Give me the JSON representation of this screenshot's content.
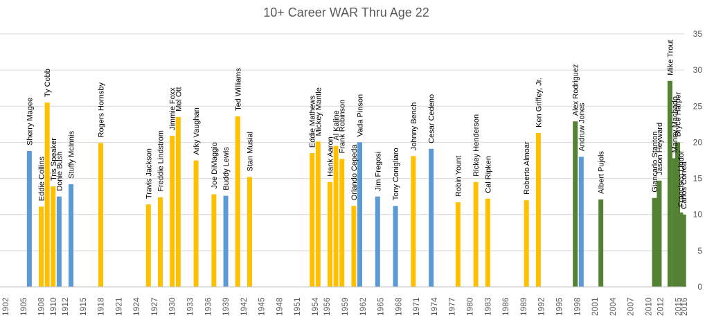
{
  "chart_data": {
    "type": "bar",
    "title": "10+ Career WAR Thru Age 22",
    "xlabel": "",
    "ylabel": "",
    "xlim": [
      1902,
      2016
    ],
    "ylim": [
      0,
      35
    ],
    "yticks": [
      0,
      5,
      10,
      15,
      20,
      25,
      30,
      35
    ],
    "xticks": [
      1902,
      1905,
      1908,
      1910,
      1912,
      1915,
      1918,
      1921,
      1924,
      1927,
      1930,
      1933,
      1936,
      1939,
      1942,
      1945,
      1948,
      1951,
      1954,
      1956,
      1959,
      1962,
      1965,
      1968,
      1971,
      1974,
      1977,
      1980,
      1983,
      1986,
      1989,
      1992,
      1995,
      1998,
      2001,
      2004,
      2007,
      2010,
      2012,
      2015,
      2016
    ],
    "grid": true,
    "legend": "none",
    "colors": {
      "blue": "#5b9bd5",
      "gold": "#ffc000",
      "green": "#548235",
      "grid": "#d9d9d9",
      "axis": "#bfbfbf",
      "text": "#595959"
    },
    "bars": [
      {
        "name": "Sherry Magee",
        "x": 1906.0,
        "value": 18.8,
        "color": "blue"
      },
      {
        "name": "Eddie Collins",
        "x": 1908.0,
        "value": 11.1,
        "color": "gold"
      },
      {
        "name": "Ty Cobb",
        "x": 1909.0,
        "value": 25.5,
        "color": "gold"
      },
      {
        "name": "Tris Speaker",
        "x": 1910.0,
        "value": 13.9,
        "color": "gold"
      },
      {
        "name": "Donie Bush",
        "x": 1911.0,
        "value": 12.5,
        "color": "blue"
      },
      {
        "name": "Stuffy McInnis",
        "x": 1913.0,
        "value": 14.2,
        "color": "blue"
      },
      {
        "name": "Rogers Hornsby",
        "x": 1918.0,
        "value": 19.9,
        "color": "gold"
      },
      {
        "name": "Travis Jackson",
        "x": 1926.0,
        "value": 11.4,
        "color": "gold"
      },
      {
        "name": "Freddie Lindstrom",
        "x": 1928.0,
        "value": 12.4,
        "color": "gold"
      },
      {
        "name": "Jimmie Foxx",
        "x": 1930.0,
        "value": 20.9,
        "color": "gold"
      },
      {
        "name": "Mel Ott",
        "x": 1931.0,
        "value": 23.5,
        "color": "gold"
      },
      {
        "name": "Arky Vaughan",
        "x": 1934.0,
        "value": 17.5,
        "color": "gold"
      },
      {
        "name": "Joe DiMaggio",
        "x": 1937.0,
        "value": 12.8,
        "color": "gold"
      },
      {
        "name": "Buddy Lewis",
        "x": 1939.0,
        "value": 12.6,
        "color": "blue"
      },
      {
        "name": "Ted Williams",
        "x": 1941.0,
        "value": 23.6,
        "color": "gold"
      },
      {
        "name": "Stan Musial",
        "x": 1943.0,
        "value": 15.2,
        "color": "gold"
      },
      {
        "name": "Eddie Mathews",
        "x": 1953.5,
        "value": 18.5,
        "color": "gold"
      },
      {
        "name": "Mickey Mantle",
        "x": 1954.5,
        "value": 20.1,
        "color": "gold"
      },
      {
        "name": "Hank Aaron",
        "x": 1956.5,
        "value": 14.5,
        "color": "gold"
      },
      {
        "name": "Al Kaline",
        "x": 1957.5,
        "value": 19.5,
        "color": "gold"
      },
      {
        "name": "Frank Robinson",
        "x": 1958.5,
        "value": 17.7,
        "color": "gold"
      },
      {
        "name": "Orlando Cepeda",
        "x": 1960.5,
        "value": 11.2,
        "color": "gold"
      },
      {
        "name": "Vada Pinson",
        "x": 1961.5,
        "value": 20.0,
        "color": "blue"
      },
      {
        "name": "Jim Fregosi",
        "x": 1964.5,
        "value": 12.5,
        "color": "blue"
      },
      {
        "name": "Tony Conigliaro",
        "x": 1967.5,
        "value": 11.2,
        "color": "blue"
      },
      {
        "name": "Johnny Bench",
        "x": 1970.5,
        "value": 18.1,
        "color": "gold"
      },
      {
        "name": "Cesar Cedeno",
        "x": 1973.5,
        "value": 19.1,
        "color": "blue"
      },
      {
        "name": "Robin Yount",
        "x": 1978.0,
        "value": 11.7,
        "color": "gold"
      },
      {
        "name": "Rickey Henderson",
        "x": 1981.0,
        "value": 14.5,
        "color": "gold"
      },
      {
        "name": "Cal Ripken",
        "x": 1983.0,
        "value": 12.2,
        "color": "gold"
      },
      {
        "name": "Roberto Almoar",
        "x": 1989.5,
        "value": 12.0,
        "color": "gold"
      },
      {
        "name": "Ken Griffey, Jr.",
        "x": 1991.5,
        "value": 21.3,
        "color": "gold"
      },
      {
        "name": "Alex Rodriguez",
        "x": 1997.7,
        "value": 22.9,
        "color": "green"
      },
      {
        "name": "Andruw Jones",
        "x": 1998.7,
        "value": 18.0,
        "color": "blue"
      },
      {
        "name": "Albert Pujols",
        "x": 2002.0,
        "value": 12.1,
        "color": "green"
      },
      {
        "name": "Giancarlo Stanton",
        "x": 2011.0,
        "value": 12.3,
        "color": "green"
      },
      {
        "name": "Jason Heyward",
        "x": 2011.8,
        "value": 14.7,
        "color": "green"
      },
      {
        "name": "Mike Trout",
        "x": 2013.6,
        "value": 28.5,
        "color": "green"
      },
      {
        "name": "Manny Machado",
        "x": 2014.4,
        "value": 17.8,
        "color": "green"
      },
      {
        "name": "Bryce Harper",
        "x": 2014.9,
        "value": 20.0,
        "color": "green"
      },
      {
        "name": "Francisco Lindor",
        "x": 2015.4,
        "value": 10.3,
        "color": "green"
      },
      {
        "name": "Carlos Correa",
        "x": 2015.9,
        "value": 10.0,
        "color": "green"
      }
    ]
  }
}
